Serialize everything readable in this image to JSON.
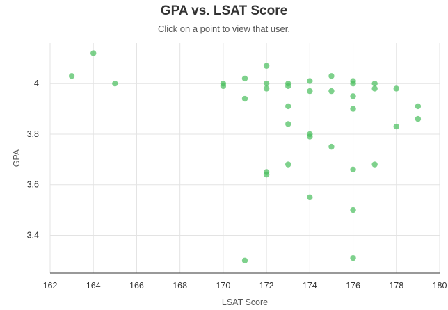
{
  "chart_data": {
    "type": "scatter",
    "title": "GPA vs. LSAT Score",
    "subtitle": "Click on a point to view that user.",
    "xlabel": "LSAT Score",
    "ylabel": "GPA",
    "xlim": [
      162,
      180
    ],
    "ylim": [
      3.25,
      4.16
    ],
    "xticks": [
      162,
      164,
      166,
      168,
      170,
      172,
      174,
      176,
      178,
      180
    ],
    "yticks": [
      3.4,
      3.6,
      3.8,
      4
    ],
    "ytick_labels": [
      "3.4",
      "3.6",
      "3.8",
      "4"
    ],
    "grid": true,
    "point_color": "#4cbf5f",
    "points": [
      {
        "x": 163,
        "y": 4.03
      },
      {
        "x": 164,
        "y": 4.12
      },
      {
        "x": 165,
        "y": 4.0
      },
      {
        "x": 170,
        "y": 4.0
      },
      {
        "x": 170,
        "y": 3.99
      },
      {
        "x": 171,
        "y": 4.02
      },
      {
        "x": 171,
        "y": 3.94
      },
      {
        "x": 171,
        "y": 3.3
      },
      {
        "x": 172,
        "y": 4.07
      },
      {
        "x": 172,
        "y": 4.0
      },
      {
        "x": 172,
        "y": 3.98
      },
      {
        "x": 172,
        "y": 3.65
      },
      {
        "x": 172,
        "y": 3.64
      },
      {
        "x": 173,
        "y": 4.0
      },
      {
        "x": 173,
        "y": 3.99
      },
      {
        "x": 173,
        "y": 3.91
      },
      {
        "x": 173,
        "y": 3.84
      },
      {
        "x": 173,
        "y": 3.68
      },
      {
        "x": 174,
        "y": 4.01
      },
      {
        "x": 174,
        "y": 3.97
      },
      {
        "x": 174,
        "y": 3.8
      },
      {
        "x": 174,
        "y": 3.79
      },
      {
        "x": 174,
        "y": 3.55
      },
      {
        "x": 175,
        "y": 4.03
      },
      {
        "x": 175,
        "y": 3.97
      },
      {
        "x": 175,
        "y": 3.75
      },
      {
        "x": 176,
        "y": 4.01
      },
      {
        "x": 176,
        "y": 4.0
      },
      {
        "x": 176,
        "y": 3.95
      },
      {
        "x": 176,
        "y": 3.9
      },
      {
        "x": 176,
        "y": 3.66
      },
      {
        "x": 176,
        "y": 3.5
      },
      {
        "x": 176,
        "y": 3.31
      },
      {
        "x": 177,
        "y": 4.0
      },
      {
        "x": 177,
        "y": 3.98
      },
      {
        "x": 177,
        "y": 3.68
      },
      {
        "x": 178,
        "y": 3.98
      },
      {
        "x": 178,
        "y": 3.83
      },
      {
        "x": 179,
        "y": 3.91
      },
      {
        "x": 179,
        "y": 3.86
      }
    ]
  }
}
